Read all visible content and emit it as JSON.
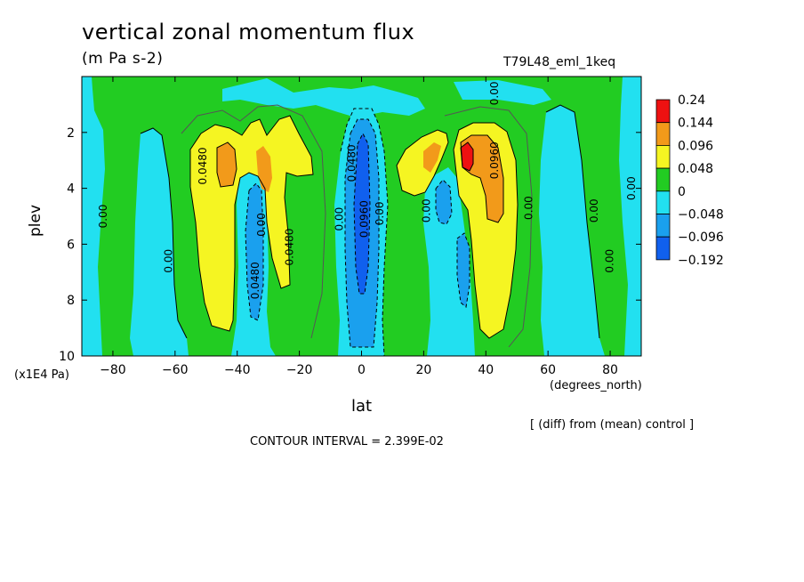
{
  "chart_data": {
    "type": "contour",
    "title": "vertical zonal momentum flux",
    "subtitle": "(m Pa s-2)",
    "experiment": "T79L48_eml_1keq",
    "xlabel": "lat",
    "xunit": "(degrees_north)",
    "ylabel": "plev",
    "yunit": "(x1E4 Pa)",
    "xlim": [
      -90,
      90
    ],
    "ylim": [
      0,
      10
    ],
    "y_inverted": true,
    "x_ticks": [
      -80,
      -60,
      -40,
      -20,
      0,
      20,
      40,
      60,
      80
    ],
    "y_ticks": [
      2,
      4,
      6,
      8,
      10
    ],
    "legend": {
      "position": "right",
      "levels": [
        "0.24",
        "0.144",
        "0.096",
        "0.048",
        "0",
        "−0.048",
        "−0.096",
        "−0.192"
      ],
      "colors": [
        "#ee1111",
        "#f29a1a",
        "#f5f522",
        "#22cc22",
        "#22e0f0",
        "#1aa0ee",
        "#1060ee"
      ]
    },
    "contour_labels": [
      {
        "text": "0.00",
        "lat": -82,
        "plev": 5.0
      },
      {
        "text": "0.00",
        "lat": -61,
        "plev": 6.6
      },
      {
        "text": "0.0480",
        "lat": -50,
        "plev": 3.2
      },
      {
        "text": "0.0480",
        "lat": -33,
        "plev": 7.3
      },
      {
        "text": "0.00",
        "lat": -31,
        "plev": 5.3
      },
      {
        "text": "0.0480",
        "lat": -22,
        "plev": 6.1
      },
      {
        "text": "0.00",
        "lat": -6,
        "plev": 5.1
      },
      {
        "text": "0.0480",
        "lat": -2,
        "plev": 3.1
      },
      {
        "text": "0.0960",
        "lat": 2,
        "plev": 5.1
      },
      {
        "text": "0.00",
        "lat": 7,
        "plev": 4.9
      },
      {
        "text": "0.00",
        "lat": 22,
        "plev": 4.8
      },
      {
        "text": "0.00",
        "lat": 44,
        "plev": 0.6
      },
      {
        "text": "0.0960",
        "lat": 44,
        "plev": 3.0
      },
      {
        "text": "0.00",
        "lat": 55,
        "plev": 4.7
      },
      {
        "text": "0.00",
        "lat": 76,
        "plev": 4.8
      },
      {
        "text": "0.00",
        "lat": 81,
        "plev": 6.6
      },
      {
        "text": "0.00",
        "lat": 88,
        "plev": 4.0
      }
    ]
  },
  "footer": {
    "diff_note": "[ (diff) from (mean) control ]",
    "contour_interval": "CONTOUR INTERVAL = 2.399E-02"
  }
}
